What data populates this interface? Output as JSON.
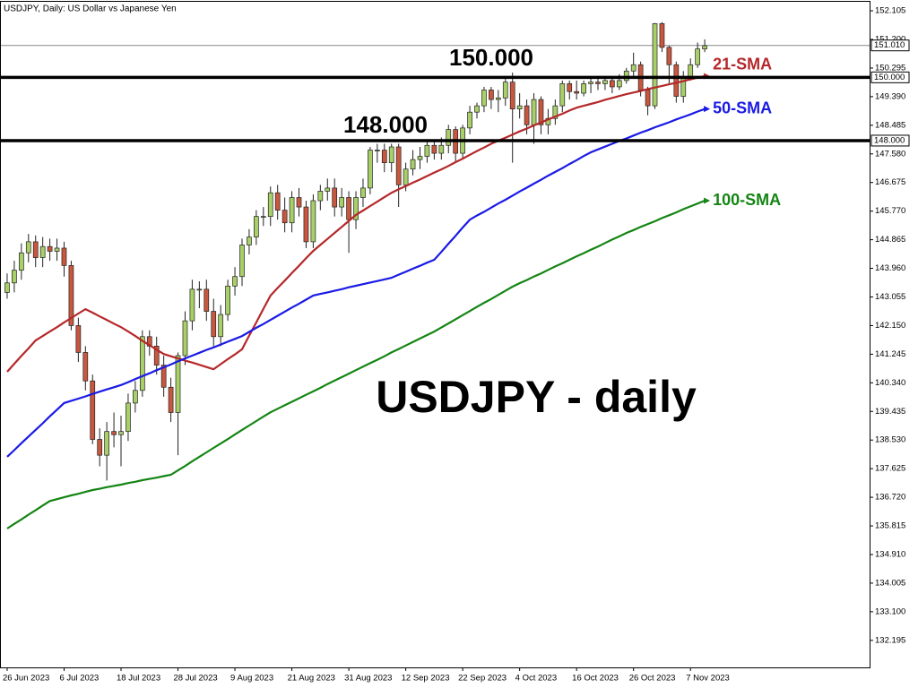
{
  "chart_data": {
    "type": "candlestick",
    "title": "USDJPY, Daily:  US Dollar vs Japanese Yen",
    "annotation": "USDJPY - daily",
    "categories": [
      "26 Jun 2023",
      null,
      null,
      null,
      null,
      null,
      null,
      null,
      "6 Jul 2023",
      null,
      null,
      null,
      null,
      null,
      null,
      null,
      "18 Jul 2023",
      null,
      null,
      null,
      null,
      null,
      null,
      null,
      "28 Jul 2023",
      null,
      null,
      null,
      null,
      null,
      null,
      null,
      "9 Aug 2023",
      null,
      null,
      null,
      null,
      null,
      null,
      null,
      "21 Aug 2023",
      null,
      null,
      null,
      null,
      null,
      null,
      null,
      "31 Aug 2023",
      null,
      null,
      null,
      null,
      null,
      null,
      null,
      "12 Sep 2023",
      null,
      null,
      null,
      null,
      null,
      null,
      null,
      "22 Sep 2023",
      null,
      null,
      null,
      null,
      null,
      null,
      null,
      "4 Oct 2023",
      null,
      null,
      null,
      null,
      null,
      null,
      null,
      "16 Oct 2023",
      null,
      null,
      null,
      null,
      null,
      null,
      null,
      "26 Oct 2023",
      null,
      null,
      null,
      null,
      null,
      null,
      null,
      "7 Nov 2023",
      null,
      null
    ],
    "ohlc": {
      "up_color": "#a8cf68",
      "down_color": "#c8573e",
      "open": [
        143.2,
        143.5,
        143.9,
        144.45,
        144.8,
        144.3,
        144.65,
        144.5,
        144.6,
        144.05,
        142.15,
        141.3,
        140.4,
        138.55,
        138.05,
        138.8,
        138.7,
        138.8,
        139.7,
        140.1,
        141.8,
        141.5,
        140.9,
        140.2,
        139.4,
        141.2,
        142.3,
        143.3,
        143.3,
        142.6,
        141.8,
        142.5,
        143.4,
        143.7,
        144.7,
        144.95,
        145.6,
        145.6,
        146.35,
        145.8,
        145.4,
        146.2,
        145.9,
        144.8,
        146.1,
        146.4,
        146.5,
        145.9,
        146.2,
        145.5,
        146.2,
        146.5,
        147.7,
        147.7,
        147.3,
        147.8,
        146.6,
        147.1,
        147.4,
        147.5,
        147.85,
        147.6,
        147.85,
        148.35,
        147.6,
        148.4,
        148.9,
        149.1,
        149.6,
        149.3,
        149.35,
        149.85,
        149.0,
        149.1,
        148.5,
        149.3,
        148.5,
        148.7,
        149.1,
        149.8,
        149.55,
        149.5,
        149.8,
        149.85,
        149.8,
        149.9,
        149.7,
        149.9,
        150.2,
        150.4,
        149.6,
        149.1,
        151.7,
        150.95,
        150.4,
        149.4,
        150.0,
        150.4,
        150.9
      ],
      "high": [
        143.8,
        144.2,
        144.75,
        145.05,
        145.0,
        144.95,
        144.9,
        144.9,
        144.8,
        144.2,
        142.4,
        141.5,
        140.6,
        138.9,
        139.1,
        139.4,
        139.3,
        140.0,
        140.4,
        142.0,
        142.0,
        141.8,
        141.2,
        140.5,
        141.3,
        142.6,
        143.6,
        143.55,
        143.6,
        143.0,
        142.8,
        143.6,
        144.0,
        144.9,
        145.2,
        145.8,
        145.9,
        146.55,
        146.6,
        146.2,
        146.4,
        146.5,
        146.1,
        146.3,
        146.6,
        146.8,
        146.8,
        146.5,
        146.4,
        146.4,
        146.8,
        147.8,
        147.9,
        147.9,
        147.9,
        147.9,
        147.3,
        147.7,
        147.8,
        148.0,
        148.0,
        148.1,
        148.5,
        148.45,
        148.5,
        149.1,
        149.2,
        149.7,
        149.7,
        149.6,
        150.0,
        150.15,
        149.5,
        149.3,
        149.5,
        149.4,
        149.0,
        149.3,
        149.9,
        149.9,
        149.9,
        149.9,
        150.0,
        150.0,
        150.0,
        150.0,
        150.1,
        150.3,
        150.78,
        150.5,
        149.7,
        151.72,
        151.75,
        151.0,
        150.5,
        150.2,
        150.6,
        151.1,
        151.2
      ],
      "low": [
        143.0,
        143.2,
        143.6,
        144.15,
        144.0,
        144.0,
        144.2,
        144.2,
        143.7,
        142.0,
        141.0,
        140.1,
        138.4,
        137.7,
        137.25,
        138.3,
        137.7,
        138.5,
        139.4,
        139.9,
        141.2,
        140.6,
        139.9,
        139.1,
        138.05,
        140.9,
        142.0,
        142.7,
        142.3,
        141.5,
        141.5,
        142.3,
        143.1,
        143.4,
        144.4,
        144.7,
        145.3,
        145.3,
        145.5,
        145.1,
        145.1,
        145.6,
        144.6,
        144.6,
        145.8,
        146.1,
        145.6,
        145.6,
        144.45,
        145.2,
        145.9,
        146.3,
        147.3,
        147.0,
        147.0,
        145.9,
        146.4,
        146.9,
        147.1,
        147.3,
        147.4,
        147.4,
        147.6,
        147.3,
        147.4,
        148.2,
        148.7,
        148.9,
        149.0,
        148.9,
        149.1,
        147.3,
        148.7,
        148.2,
        147.9,
        148.2,
        148.2,
        148.5,
        148.9,
        149.3,
        149.3,
        149.4,
        149.5,
        149.6,
        149.6,
        149.5,
        149.6,
        149.8,
        150.0,
        149.4,
        148.8,
        149.0,
        150.8,
        149.8,
        149.2,
        149.2,
        149.9,
        150.3,
        150.8
      ],
      "close": [
        143.5,
        143.9,
        144.45,
        144.8,
        144.3,
        144.65,
        144.5,
        144.6,
        144.05,
        142.15,
        141.3,
        140.4,
        138.55,
        138.05,
        138.8,
        138.7,
        138.8,
        139.7,
        140.1,
        141.8,
        141.5,
        140.9,
        140.2,
        139.4,
        141.2,
        142.3,
        143.3,
        143.3,
        142.6,
        141.8,
        142.5,
        143.4,
        143.7,
        144.7,
        144.95,
        145.6,
        145.6,
        146.35,
        145.8,
        145.4,
        146.2,
        145.9,
        144.8,
        146.1,
        146.4,
        146.5,
        145.9,
        146.2,
        145.5,
        146.2,
        146.5,
        147.7,
        147.7,
        147.3,
        147.8,
        146.6,
        147.1,
        147.4,
        147.5,
        147.85,
        147.6,
        147.85,
        148.35,
        147.6,
        148.4,
        148.9,
        149.1,
        149.6,
        149.3,
        149.35,
        149.85,
        149.0,
        149.1,
        148.5,
        149.3,
        148.5,
        148.7,
        149.1,
        149.8,
        149.55,
        149.5,
        149.8,
        149.85,
        149.8,
        149.9,
        149.7,
        149.9,
        150.2,
        150.4,
        149.6,
        149.1,
        151.7,
        150.95,
        150.4,
        149.4,
        150.0,
        150.4,
        150.9,
        151.0
      ]
    },
    "series": [
      {
        "name": "21-SMA",
        "color": "#b5282a",
        "values": [
          140.69,
          140.94,
          141.19,
          141.43,
          141.68,
          141.82,
          141.96,
          142.1,
          142.25,
          142.39,
          142.53,
          142.67,
          142.56,
          142.44,
          142.33,
          142.21,
          142.1,
          141.96,
          141.82,
          141.67,
          141.53,
          141.39,
          141.25,
          141.18,
          141.11,
          141.04,
          140.98,
          140.91,
          140.84,
          140.77,
          140.93,
          141.09,
          141.24,
          141.4,
          141.83,
          142.25,
          142.68,
          143.1,
          143.34,
          143.57,
          143.81,
          144.04,
          144.28,
          144.51,
          144.7,
          144.89,
          145.08,
          145.27,
          145.46,
          145.65,
          145.79,
          145.93,
          146.07,
          146.21,
          146.35,
          146.46,
          146.56,
          146.67,
          146.77,
          146.88,
          146.99,
          147.09,
          147.2,
          147.32,
          147.43,
          147.55,
          147.67,
          147.78,
          147.9,
          148.0,
          148.09,
          148.19,
          148.29,
          148.38,
          148.48,
          148.57,
          148.67,
          148.76,
          148.85,
          148.95,
          149.04,
          149.1,
          149.16,
          149.22,
          149.29,
          149.35,
          149.41,
          149.47,
          149.52,
          149.57,
          149.63,
          149.68,
          149.73,
          149.78,
          149.83,
          149.88,
          149.94,
          149.99,
          150.04
        ]
      },
      {
        "name": "50-SMA",
        "color": "#1a1ae6",
        "values": [
          138.0,
          138.21,
          138.43,
          138.64,
          138.85,
          139.06,
          139.28,
          139.49,
          139.7,
          139.77,
          139.84,
          139.91,
          139.99,
          140.06,
          140.13,
          140.2,
          140.27,
          140.36,
          140.46,
          140.55,
          140.64,
          140.74,
          140.83,
          140.92,
          141.02,
          141.11,
          141.2,
          141.29,
          141.38,
          141.46,
          141.55,
          141.64,
          141.73,
          141.82,
          141.95,
          142.08,
          142.2,
          142.33,
          142.46,
          142.59,
          142.72,
          142.84,
          142.97,
          143.1,
          143.15,
          143.2,
          143.25,
          143.3,
          143.36,
          143.41,
          143.46,
          143.51,
          143.56,
          143.61,
          143.66,
          143.76,
          143.85,
          143.95,
          144.04,
          144.14,
          144.23,
          144.48,
          144.74,
          144.99,
          145.25,
          145.5,
          145.63,
          145.75,
          145.88,
          146.01,
          146.13,
          146.26,
          146.39,
          146.51,
          146.64,
          146.76,
          146.89,
          147.01,
          147.13,
          147.26,
          147.38,
          147.51,
          147.63,
          147.72,
          147.81,
          147.9,
          147.99,
          148.07,
          148.16,
          148.25,
          148.33,
          148.42,
          148.5,
          148.58,
          148.67,
          148.75,
          148.83,
          148.92,
          149.0
        ]
      },
      {
        "name": "100-SMA",
        "color": "#148514",
        "values": [
          135.73,
          135.88,
          136.02,
          136.17,
          136.31,
          136.46,
          136.6,
          136.66,
          136.72,
          136.78,
          136.83,
          136.89,
          136.95,
          136.99,
          137.04,
          137.08,
          137.12,
          137.17,
          137.21,
          137.26,
          137.3,
          137.34,
          137.39,
          137.43,
          137.57,
          137.71,
          137.86,
          138.0,
          138.14,
          138.28,
          138.42,
          138.56,
          138.71,
          138.85,
          138.99,
          139.13,
          139.27,
          139.41,
          139.52,
          139.63,
          139.74,
          139.85,
          139.96,
          140.07,
          140.18,
          140.3,
          140.41,
          140.52,
          140.63,
          140.74,
          140.85,
          140.96,
          141.07,
          141.18,
          141.3,
          141.41,
          141.52,
          141.63,
          141.74,
          141.85,
          141.96,
          142.09,
          142.22,
          142.35,
          142.48,
          142.61,
          142.74,
          142.87,
          142.99,
          143.12,
          143.25,
          143.38,
          143.49,
          143.59,
          143.7,
          143.8,
          143.91,
          144.02,
          144.12,
          144.23,
          144.34,
          144.44,
          144.55,
          144.65,
          144.76,
          144.87,
          144.97,
          145.08,
          145.17,
          145.27,
          145.36,
          145.45,
          145.55,
          145.64,
          145.73,
          145.83,
          145.92,
          146.01,
          146.1
        ]
      }
    ],
    "levels": [
      {
        "value": 150,
        "label": "150.000"
      },
      {
        "value": 148,
        "label": "148.000"
      }
    ],
    "last_price": {
      "value": 151.01,
      "label": "151.010"
    },
    "ylim": [
      131.34,
      152.39
    ],
    "yticks": [
      152.105,
      {
        "value": 151.2,
        "label": "151.200"
      },
      150.295,
      {
        "value": 149.39,
        "label": "149.390"
      },
      148.485,
      {
        "value": 147.58,
        "label": "147.580"
      },
      146.675,
      {
        "value": 145.77,
        "label": "145.770"
      },
      144.865,
      {
        "value": 143.96,
        "label": "143.960"
      },
      143.055,
      {
        "value": 142.15,
        "label": "142.150"
      },
      141.245,
      {
        "value": 140.34,
        "label": "140.340"
      },
      139.435,
      {
        "value": 138.53,
        "label": "138.530"
      },
      137.625,
      {
        "value": 136.72,
        "label": "136.720"
      },
      135.815,
      {
        "value": 134.91,
        "label": "134.910"
      },
      134.005,
      {
        "value": 133.1,
        "label": "133.100"
      },
      132.195
    ]
  }
}
